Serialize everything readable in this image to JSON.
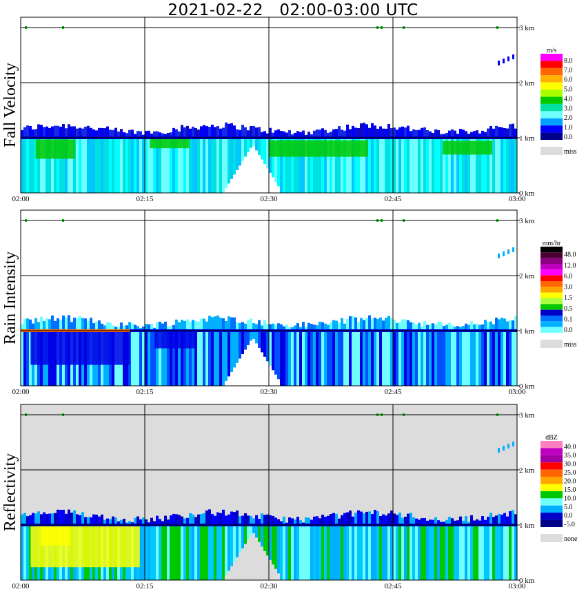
{
  "title": "2021-02-22   02:00-03:00 UTC",
  "chart_data": [
    {
      "type": "heatmap",
      "ylabel": "Fall Velocity",
      "x_ticks": [
        "02:00",
        "02:15",
        "02:30",
        "02:45",
        "03:00"
      ],
      "y_ticks": [
        "0 km",
        "1 km",
        "2 km",
        "3 km"
      ],
      "xlim": [
        "02:00",
        "03:00"
      ],
      "ylim_km": [
        0,
        3.5
      ],
      "background": "#ffffff",
      "colorbar": {
        "unit": "m/s",
        "labels": [
          "8.0",
          "7.0",
          "6.0",
          "5.0",
          "4.0",
          "3.0",
          "2.0",
          "1.0",
          "0.0"
        ],
        "colors": [
          "#ff00ff",
          "#ff0000",
          "#ff6600",
          "#ffb000",
          "#ffff00",
          "#a8ff00",
          "#00c800",
          "#00e0a0",
          "#70ffff",
          "#00a0ff",
          "#0000ff",
          "#00008b"
        ],
        "missing_label": "miss",
        "missing_color": "#dcdcdc"
      }
    },
    {
      "type": "heatmap",
      "ylabel": "Rain Intensity",
      "x_ticks": [
        "02:00",
        "02:15",
        "02:30",
        "02:45",
        "03:00"
      ],
      "y_ticks": [
        "0 km",
        "1 km",
        "2 km",
        "3 km"
      ],
      "xlim": [
        "02:00",
        "03:00"
      ],
      "ylim_km": [
        0,
        3.5
      ],
      "background": "#ffffff",
      "colorbar": {
        "unit": "mm/hr",
        "labels": [
          "48.0",
          "12.0",
          "6.0",
          "3.0",
          "1.5",
          "0.5",
          "0.1",
          "0.0"
        ],
        "colors": [
          "#000000",
          "#4b0030",
          "#8b0080",
          "#c000c0",
          "#ff00ff",
          "#ff0000",
          "#ff6600",
          "#ffa500",
          "#ffff00",
          "#a8ff40",
          "#00c800",
          "#0000c8",
          "#0070ff",
          "#00b0ff",
          "#70ffff"
        ],
        "missing_label": "miss",
        "missing_color": "#dcdcdc"
      }
    },
    {
      "type": "heatmap",
      "ylabel": "Reflectivity",
      "x_ticks": [
        "02:00",
        "02:15",
        "02:30",
        "02:45",
        "03:00"
      ],
      "y_ticks": [
        "0 km",
        "1 km",
        "2 km",
        "3 km"
      ],
      "xlim": [
        "02:00",
        "03:00"
      ],
      "ylim_km": [
        0,
        3.5
      ],
      "background": "#dcdcdc",
      "colorbar": {
        "unit": "dBZ",
        "labels": [
          "40.0",
          "35.0",
          "30.0",
          "25.0",
          "20.0",
          "15.0",
          "10.0",
          "5.0",
          "0.0",
          "-5.0"
        ],
        "colors": [
          "#ff80c0",
          "#c000c0",
          "#a000a0",
          "#ff0000",
          "#ff6600",
          "#ffa500",
          "#ffff00",
          "#00c800",
          "#70ffff",
          "#00b0ff",
          "#0000c8",
          "#00008b"
        ],
        "missing_label": "none",
        "missing_color": "#dcdcdc"
      }
    }
  ]
}
